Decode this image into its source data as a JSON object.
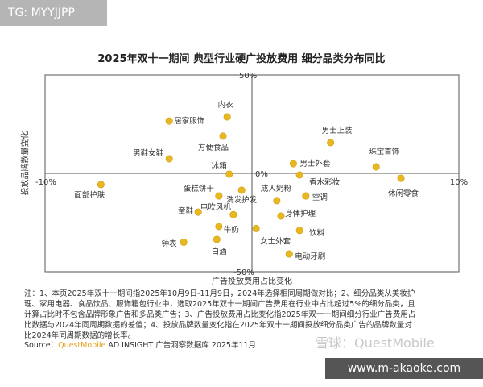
{
  "badge": "TG: MYYJJPP",
  "watermark": "雪球：QuestMobile",
  "site": "www.m-akaoke.com",
  "chart_data": {
    "type": "scatter",
    "title": "2025年双十一期间 典型行业硬广投放费用 细分品类分布同比",
    "xlabel": "广告投放费用占比变化",
    "ylabel": "投放品牌数量变化",
    "xlim": [
      -10,
      10
    ],
    "ylim": [
      -50,
      50
    ],
    "x_tick_labels": [
      "-10%",
      "10%"
    ],
    "y_tick_labels": [
      "50%",
      "0%",
      "-50%"
    ],
    "color": "#e8b820",
    "grid": false,
    "points": [
      {
        "label": "内衣",
        "x": -1.2,
        "y": 28.7
      },
      {
        "label": "居家服饰",
        "x": -4.0,
        "y": 26.6
      },
      {
        "label": "方便食品",
        "x": -1.4,
        "y": 18.9
      },
      {
        "label": "男鞋女鞋",
        "x": -4.0,
        "y": 7.4
      },
      {
        "label": "冰箱",
        "x": -1.1,
        "y": -0.4
      },
      {
        "label": "面部护肤",
        "x": -7.3,
        "y": -5.7
      },
      {
        "label": "男士上装",
        "x": 3.8,
        "y": 15.6
      },
      {
        "label": "珠宝首饰",
        "x": 6.0,
        "y": 3.3
      },
      {
        "label": "男士外套",
        "x": 2.0,
        "y": 4.9
      },
      {
        "label": "香水彩妆",
        "x": 2.3,
        "y": -0.8
      },
      {
        "label": "休闲零食",
        "x": 7.2,
        "y": -2.5
      },
      {
        "label": "空调",
        "x": 2.6,
        "y": -11.5
      },
      {
        "label": "成人奶粉",
        "x": 1.2,
        "y": -13.9
      },
      {
        "label": "身体护理",
        "x": 1.4,
        "y": -21.7
      },
      {
        "label": "饮料",
        "x": 2.3,
        "y": -29.0
      },
      {
        "label": "电动牙刷",
        "x": 1.8,
        "y": -41.0
      },
      {
        "label": "女士外套",
        "x": 0.2,
        "y": -28.0
      },
      {
        "label": "蛋糕饼干",
        "x": -1.6,
        "y": -11.5
      },
      {
        "label": "洗发护发",
        "x": -0.5,
        "y": -8.6
      },
      {
        "label": "电吹风机",
        "x": -0.9,
        "y": -21.0
      },
      {
        "label": "童鞋",
        "x": -2.6,
        "y": -19.7
      },
      {
        "label": "牛奶",
        "x": -1.6,
        "y": -27.0
      },
      {
        "label": "钟表",
        "x": -3.3,
        "y": -35.0
      },
      {
        "label": "白酒",
        "x": -1.7,
        "y": -33.6
      }
    ]
  },
  "notes": "注：1、本页2025年双十一期间指2025年10月9日-11月9日，2024年选择相同周期做对比；2、细分品类从美妆护理、家用电器、食品饮品、服饰箱包行业中，选取2025年双十一期间广告费用在行业中占比超过5%的细分品类，且计算占比时不包含品牌形象广告和多品类广告；3、广告投放费用占比变化指2025年双十一期间细分行业广告费用占比数据与2024年同周期数据的差值；4、投放品牌数量变化指在2025年双十一期间投放细分品类广告的品牌数量对比2024年同周期数据的增长率。",
  "source": {
    "prefix": "Source：",
    "brand": "QuestMobile",
    "suffix": " AD INSIGHT 广告洞察数据库 2025年11月"
  }
}
